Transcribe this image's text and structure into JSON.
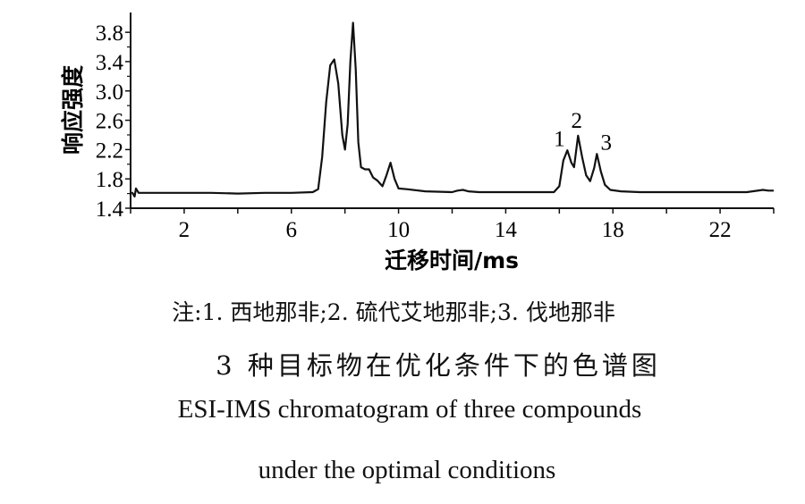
{
  "chart_data": {
    "type": "line",
    "title": "",
    "xlabel": "迁移时间/ms",
    "ylabel": "响应强度",
    "xlim": [
      0,
      24
    ],
    "ylim": [
      1.4,
      4.07
    ],
    "xticks": [
      2,
      6,
      10,
      14,
      18,
      22
    ],
    "yticks": [
      1.4,
      1.8,
      2.2,
      2.6,
      3.0,
      3.4,
      3.8
    ],
    "ytick_labels": [
      "1.4",
      "1.8",
      "2.2",
      "2.6",
      "3.0",
      "3.4",
      "3.8"
    ],
    "grid": false,
    "series": [
      {
        "name": "ESI-IMS",
        "x": [
          0.05,
          0.15,
          0.2,
          0.3,
          1,
          2,
          3,
          4,
          5,
          6,
          6.8,
          7.0,
          7.15,
          7.3,
          7.45,
          7.6,
          7.75,
          7.9,
          8.0,
          8.1,
          8.2,
          8.3,
          8.4,
          8.5,
          8.6,
          8.75,
          8.9,
          9.05,
          9.2,
          9.4,
          9.55,
          9.7,
          9.85,
          10.0,
          10.3,
          11,
          12,
          12.2,
          12.4,
          12.6,
          13,
          14,
          15,
          15.8,
          16.0,
          16.15,
          16.3,
          16.45,
          16.55,
          16.7,
          16.85,
          17.0,
          17.15,
          17.3,
          17.4,
          17.55,
          17.7,
          17.9,
          18.3,
          19,
          20,
          21,
          22,
          23,
          23.6,
          23.8,
          24
        ],
        "y": [
          1.62,
          1.56,
          1.67,
          1.61,
          1.61,
          1.61,
          1.61,
          1.6,
          1.61,
          1.61,
          1.62,
          1.66,
          2.1,
          2.85,
          3.35,
          3.43,
          3.1,
          2.4,
          2.2,
          2.55,
          3.4,
          3.93,
          3.3,
          2.3,
          1.96,
          1.93,
          1.93,
          1.82,
          1.78,
          1.7,
          1.85,
          2.02,
          1.8,
          1.67,
          1.66,
          1.63,
          1.62,
          1.64,
          1.65,
          1.63,
          1.62,
          1.62,
          1.62,
          1.62,
          1.7,
          2.05,
          2.19,
          2.02,
          1.96,
          2.39,
          2.1,
          1.85,
          1.77,
          1.95,
          2.14,
          1.9,
          1.72,
          1.65,
          1.63,
          1.62,
          1.62,
          1.62,
          1.62,
          1.62,
          1.65,
          1.64,
          1.64
        ]
      }
    ],
    "annotations": [
      {
        "text": "1",
        "x": 16.0,
        "y": 2.25
      },
      {
        "text": "2",
        "x": 16.65,
        "y": 2.5
      },
      {
        "text": "3",
        "x": 17.75,
        "y": 2.2
      }
    ]
  },
  "captions": {
    "note": "注:1. 西地那非;2. 硫代艾地那非;3. 伐地那非",
    "title_cn": "3 种目标物在优化条件下的色谱图",
    "title_en_line1": "ESI-IMS chromatogram of three compounds",
    "title_en_line2": "under the optimal conditions"
  }
}
